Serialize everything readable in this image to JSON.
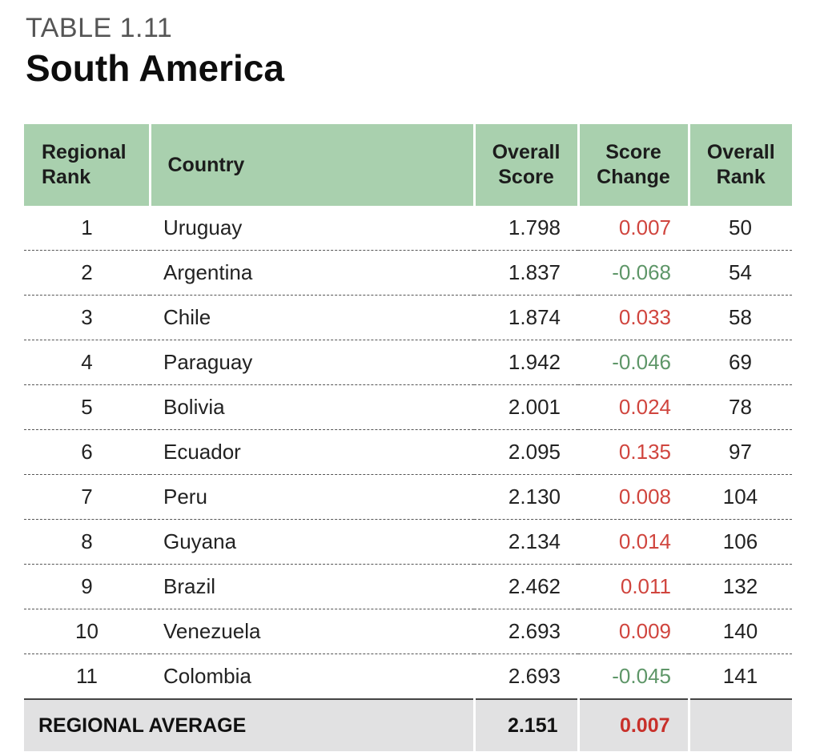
{
  "header": {
    "label": "TABLE 1.11",
    "title": "South America"
  },
  "columns": {
    "regional_rank": [
      "Regional",
      "Rank"
    ],
    "country": "Country",
    "overall_score": [
      "Overall",
      "Score"
    ],
    "score_change": [
      "Score",
      "Change"
    ],
    "overall_rank": [
      "Overall",
      "Rank"
    ]
  },
  "rows": [
    {
      "regional_rank": "1",
      "country": "Uruguay",
      "overall_score": "1.798",
      "score_change": "0.007",
      "overall_rank": "50"
    },
    {
      "regional_rank": "2",
      "country": "Argentina",
      "overall_score": "1.837",
      "score_change": "-0.068",
      "overall_rank": "54"
    },
    {
      "regional_rank": "3",
      "country": "Chile",
      "overall_score": "1.874",
      "score_change": "0.033",
      "overall_rank": "58"
    },
    {
      "regional_rank": "4",
      "country": "Paraguay",
      "overall_score": "1.942",
      "score_change": "-0.046",
      "overall_rank": "69"
    },
    {
      "regional_rank": "5",
      "country": "Bolivia",
      "overall_score": "2.001",
      "score_change": "0.024",
      "overall_rank": "78"
    },
    {
      "regional_rank": "6",
      "country": "Ecuador",
      "overall_score": "2.095",
      "score_change": "0.135",
      "overall_rank": "97"
    },
    {
      "regional_rank": "7",
      "country": "Peru",
      "overall_score": "2.130",
      "score_change": "0.008",
      "overall_rank": "104"
    },
    {
      "regional_rank": "8",
      "country": "Guyana",
      "overall_score": "2.134",
      "score_change": "0.014",
      "overall_rank": "106"
    },
    {
      "regional_rank": "9",
      "country": "Brazil",
      "overall_score": "2.462",
      "score_change": "0.011",
      "overall_rank": "132"
    },
    {
      "regional_rank": "10",
      "country": "Venezuela",
      "overall_score": "2.693",
      "score_change": "0.009",
      "overall_rank": "140"
    },
    {
      "regional_rank": "11",
      "country": "Colombia",
      "overall_score": "2.693",
      "score_change": "-0.045",
      "overall_rank": "141"
    }
  ],
  "footer": {
    "label": "REGIONAL AVERAGE",
    "overall_score": "2.151",
    "score_change": "0.007"
  },
  "colors": {
    "header_bg": "#a9d0ae",
    "positive_change": "#d0453e",
    "negative_change": "#5e9668",
    "footer_bg": "#e1e1e2"
  }
}
